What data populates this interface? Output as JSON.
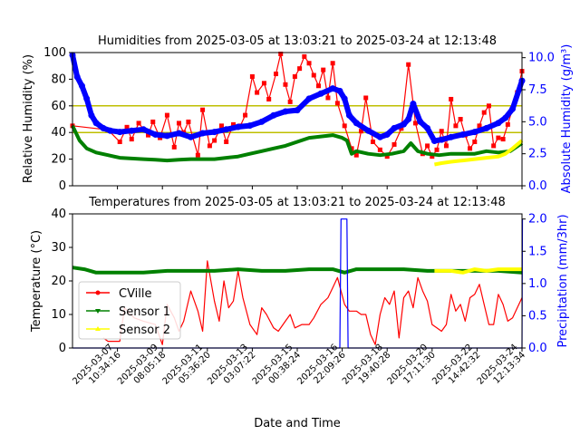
{
  "figure": {
    "xlabel": "Date and Time",
    "x_ticks": [
      "2025-03-07\n10:34:16",
      "2025-03-09\n08:05:18",
      "2025-03-11\n05:36:20",
      "2025-03-13\n03:07:22",
      "2025-03-15\n00:38:24",
      "2025-03-16\n22:09:26",
      "2025-03-18\n19:40:28",
      "2025-03-20\n17:11:30",
      "2025-03-22\n14:42:32",
      "2025-03-24\n12:13:34"
    ]
  },
  "colors": {
    "relative_humidity_line": "#ff0000",
    "absolute_humidity_line": "#0000ff",
    "sensor1": "#008000",
    "sensor2": "#ffff00",
    "threshold": "#bfbf00",
    "precip": "#0000ff",
    "right_axis": "#0000ff"
  },
  "chart_data": [
    {
      "type": "line",
      "title": "Humidities from 2025-03-05 at 13:03:21 to 2025-03-24 at 12:13:48",
      "ylabel": "Relative Humidity (%)",
      "ylim": [
        0,
        100
      ],
      "yticks": [
        0,
        20,
        40,
        60,
        80,
        100
      ],
      "y2label": "Absolute Humidity (g/m³)",
      "y2lim": [
        0,
        10.4
      ],
      "y2ticks": [
        "0.0",
        "2.5",
        "5.0",
        "7.5",
        "10.0"
      ],
      "xlim": [
        "2025-03-05",
        "2025-03-24"
      ],
      "reference_lines": [
        60,
        40
      ],
      "series": [
        {
          "axis": "left",
          "color": "red",
          "marker": "square",
          "x": [
            0.0,
            1.5,
            2.0,
            2.3,
            2.5,
            2.8,
            3.2,
            3.4,
            3.7,
            4.0,
            4.3,
            4.5,
            4.7,
            4.9,
            5.3,
            5.5,
            5.8,
            6.0,
            6.3,
            6.5,
            6.8,
            7.1,
            7.3,
            7.6,
            7.8,
            8.1,
            8.3,
            8.6,
            8.8,
            9.0,
            9.2,
            9.4,
            9.6,
            9.8,
            10.0,
            10.2,
            10.4,
            10.6,
            10.8,
            11.0,
            11.2,
            11.5,
            11.8,
            12.0,
            12.2,
            12.4,
            12.7,
            13.0,
            13.3,
            13.6,
            13.9,
            14.2,
            14.5,
            14.8,
            15.0,
            15.2,
            15.4,
            15.6,
            15.8,
            16.0,
            16.2,
            16.4,
            16.6,
            16.8,
            17.0,
            17.2,
            17.4,
            17.6,
            17.8,
            18.0,
            18.2,
            18.4,
            18.6,
            18.8,
            19.0
          ],
          "y": [
            45,
            42,
            33,
            44,
            35,
            47,
            38,
            48,
            36,
            53,
            29,
            47,
            40,
            48,
            23,
            57,
            30,
            34,
            45,
            33,
            46,
            45,
            53,
            82,
            70,
            77,
            65,
            84,
            99,
            76,
            63,
            82,
            88,
            97,
            92,
            83,
            75,
            87,
            66,
            92,
            62,
            45,
            28,
            23,
            41,
            66,
            33,
            27,
            22,
            31,
            43,
            91,
            47,
            24,
            30,
            22,
            27,
            41,
            30,
            65,
            45,
            50,
            38,
            28,
            33,
            45,
            55,
            60,
            30,
            36,
            35,
            46,
            58,
            70,
            86
          ]
        },
        {
          "name": "Sensor 1",
          "axis": "left",
          "color": "green",
          "x": [
            0.0,
            0.3,
            0.6,
            1.0,
            1.5,
            2.0,
            2.5,
            3.0,
            3.5,
            4.0,
            4.5,
            5.0,
            5.5,
            6.0,
            6.5,
            7.0,
            7.5,
            8.0,
            8.5,
            9.0,
            9.5,
            10.0,
            10.5,
            11.0,
            11.4,
            11.6,
            11.8,
            12.0,
            12.5,
            13.0,
            13.5,
            14.0,
            14.3,
            14.6,
            15.0,
            15.5,
            16.0,
            16.5,
            17.0,
            17.5,
            18.0,
            18.5,
            19.0
          ],
          "y": [
            45,
            34,
            28,
            25,
            23,
            21,
            20.5,
            20,
            19.5,
            19,
            19.5,
            20,
            20,
            20,
            21,
            22,
            24,
            26,
            28,
            30,
            33,
            36,
            37,
            38,
            36,
            34,
            24,
            26,
            24,
            23,
            24,
            26,
            32,
            26,
            24,
            23,
            24,
            24,
            24,
            26,
            25,
            26,
            32
          ]
        },
        {
          "name": "Sensor 2",
          "axis": "left",
          "color": "yellow",
          "x": [
            15.3,
            15.6,
            16.0,
            16.5,
            17.0,
            17.5,
            18.0,
            18.3,
            18.6,
            19.0
          ],
          "y": [
            16,
            17,
            18,
            19,
            20,
            21,
            22,
            24,
            28,
            34
          ]
        },
        {
          "axis": "right",
          "color": "blue",
          "marker": "circle",
          "x": [
            0.0,
            0.2,
            0.4,
            0.6,
            0.8,
            1.0,
            1.3,
            1.6,
            2.0,
            2.5,
            3.0,
            3.5,
            4.0,
            4.5,
            5.0,
            5.5,
            6.0,
            6.5,
            7.0,
            7.5,
            8.0,
            8.5,
            9.0,
            9.5,
            10.0,
            10.5,
            11.0,
            11.3,
            11.5,
            11.7,
            12.0,
            12.5,
            13.0,
            13.3,
            13.6,
            14.0,
            14.2,
            14.4,
            14.7,
            15.0,
            15.3,
            15.6,
            16.0,
            16.5,
            17.0,
            17.5,
            18.0,
            18.3,
            18.6,
            19.0
          ],
          "y": [
            10.2,
            8.5,
            7.8,
            6.8,
            5.5,
            4.9,
            4.5,
            4.3,
            4.2,
            4.3,
            4.4,
            4.0,
            3.9,
            4.1,
            3.8,
            4.1,
            4.2,
            4.4,
            4.6,
            4.7,
            5.0,
            5.5,
            5.8,
            5.9,
            6.8,
            7.2,
            7.6,
            7.4,
            6.8,
            5.5,
            4.9,
            4.3,
            3.8,
            4.0,
            4.5,
            4.8,
            5.2,
            6.4,
            5.0,
            4.5,
            3.5,
            3.6,
            3.8,
            4.0,
            4.2,
            4.5,
            4.9,
            5.3,
            6.0,
            8.2
          ]
        }
      ]
    },
    {
      "type": "line",
      "title": "Temperatures from 2025-03-05 at 13:03:21 to 2025-03-24 at 12:13:48",
      "ylabel": "Temperature (°C)",
      "ylim": [
        0,
        40
      ],
      "yticks": [
        0,
        10,
        20,
        30,
        40
      ],
      "y2label": "Precipitation (mm/3hr)",
      "y2lim": [
        0,
        2.08
      ],
      "y2ticks": [
        "0.0",
        "0.5",
        "1.0",
        "1.5",
        "2.0"
      ],
      "xlim": [
        "2025-03-05",
        "2025-03-24"
      ],
      "legend": {
        "position": "left",
        "entries": [
          "CVille",
          "Sensor 1",
          "Sensor 2"
        ]
      },
      "series": [
        {
          "name": "CVille",
          "axis": "left",
          "color": "red",
          "x": [
            1.3,
            1.5,
            1.7,
            2.0,
            2.2,
            2.6,
            3.0,
            3.5,
            3.8,
            4.0,
            4.3,
            4.5,
            4.7,
            5.0,
            5.3,
            5.5,
            5.7,
            6.0,
            6.2,
            6.4,
            6.6,
            6.8,
            7.0,
            7.2,
            7.5,
            7.8,
            8.0,
            8.2,
            8.5,
            8.7,
            9.0,
            9.2,
            9.4,
            9.7,
            10.0,
            10.2,
            10.5,
            10.8,
            11.0,
            11.2,
            11.5,
            11.7,
            12.0,
            12.2,
            12.4,
            12.6,
            12.8,
            13.0,
            13.2,
            13.4,
            13.6,
            13.8,
            14.0,
            14.2,
            14.4,
            14.6,
            14.8,
            15.0,
            15.2,
            15.4,
            15.6,
            15.8,
            16.0,
            16.2,
            16.4,
            16.6,
            16.8,
            17.0,
            17.2,
            17.4,
            17.6,
            17.8,
            18.0,
            18.2,
            18.4,
            18.6,
            18.8,
            19.0
          ],
          "y": [
            3,
            2,
            2,
            2,
            12,
            9,
            8,
            7,
            1,
            13,
            9,
            5,
            8,
            17,
            11,
            5,
            26,
            14,
            8,
            20,
            12,
            14,
            23,
            15,
            7,
            4,
            12,
            10,
            6,
            5,
            8,
            10,
            6,
            7,
            7,
            9,
            13,
            15,
            18,
            21,
            13,
            11,
            11,
            10,
            10,
            4,
            1,
            10,
            15,
            13,
            17,
            3,
            15,
            17,
            12,
            21,
            17,
            14,
            7,
            6,
            5,
            7,
            16,
            11,
            13,
            8,
            15,
            16,
            19,
            13,
            7,
            7,
            16,
            13,
            8,
            9,
            12,
            15
          ]
        },
        {
          "name": "Sensor 1",
          "axis": "left",
          "color": "green",
          "x": [
            0.0,
            0.5,
            1.0,
            2.0,
            3.0,
            4.0,
            5.0,
            6.0,
            7.0,
            8.0,
            9.0,
            10.0,
            11.0,
            11.5,
            12.0,
            13.0,
            14.0,
            15.0,
            16.0,
            17.0,
            18.0,
            19.0
          ],
          "y": [
            24,
            23.5,
            22.5,
            22.5,
            22.5,
            23,
            23,
            23,
            23.5,
            23,
            23,
            23.5,
            23.5,
            22.5,
            23.5,
            23.5,
            23.5,
            23,
            23,
            23,
            23,
            22.5
          ]
        },
        {
          "name": "Sensor 2",
          "axis": "left",
          "color": "yellow",
          "x": [
            15.3,
            16.0,
            16.5,
            17.0,
            17.5,
            18.0,
            18.5,
            19.0
          ],
          "y": [
            23,
            23,
            22.5,
            23.5,
            23,
            23.5,
            23.5,
            23.5
          ]
        },
        {
          "axis": "right",
          "color": "blue",
          "kind": "precipitation",
          "x": [
            0.0,
            11.3,
            11.35,
            11.6,
            11.65,
            19.0,
            19.02
          ],
          "y": [
            0,
            0,
            2.0,
            2.0,
            0,
            0,
            2.0
          ]
        }
      ]
    }
  ]
}
